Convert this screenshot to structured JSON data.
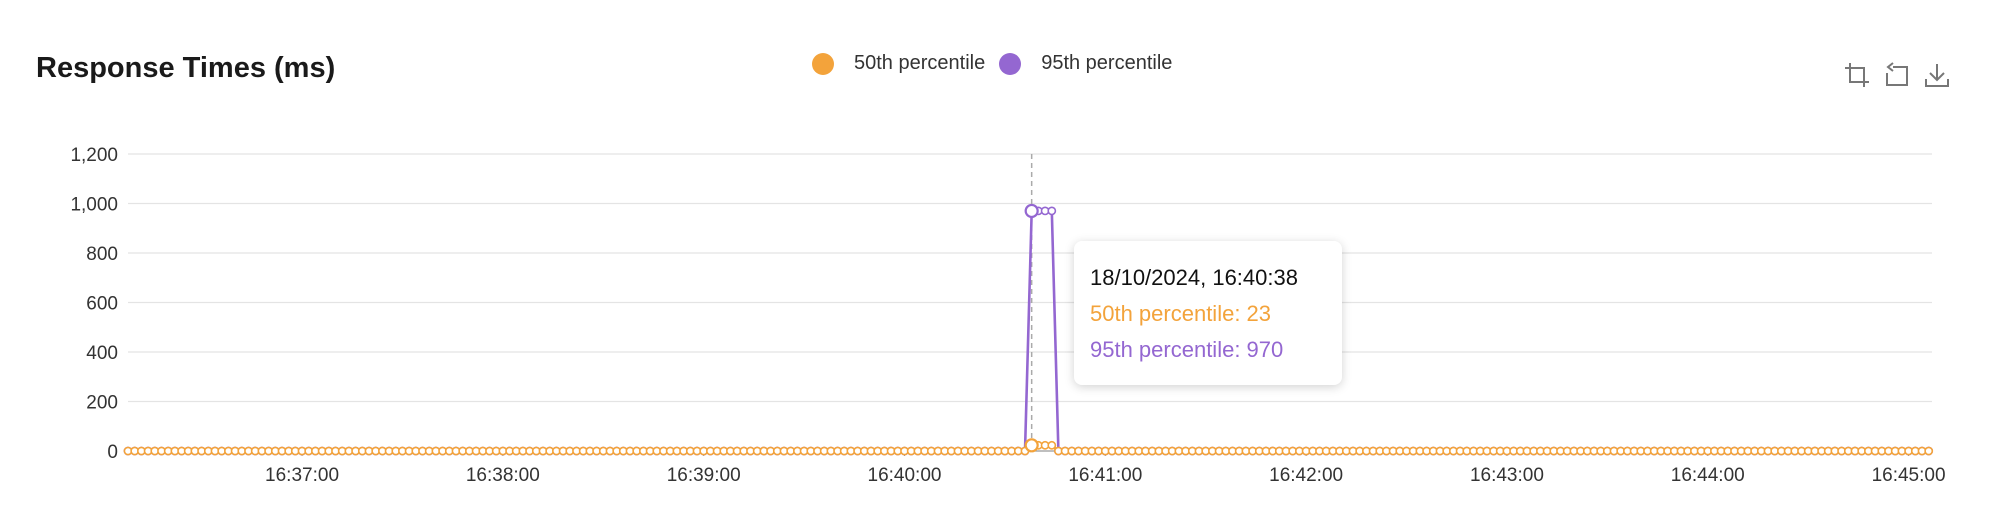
{
  "title": "Response Times (ms)",
  "colors": {
    "p50": "#f3a33b",
    "p95": "#9467d1",
    "grid": "#e4e4e4",
    "axis": "#333333"
  },
  "toolbar": {
    "icons": [
      "crop-icon",
      "reset-zoom-icon",
      "download-icon"
    ]
  },
  "tooltip": {
    "date": "18/10/2024, 16:40:38",
    "p50": "50th percentile: 23",
    "p95": "95th percentile: 970"
  },
  "chart_data": {
    "type": "line",
    "title": "Response Times (ms)",
    "xlabel": "",
    "ylabel": "",
    "x_axis": {
      "type": "time",
      "range": [
        "16:36:08",
        "16:45:07"
      ],
      "ticks": [
        "16:37:00",
        "16:38:00",
        "16:39:00",
        "16:40:00",
        "16:41:00",
        "16:42:00",
        "16:43:00",
        "16:44:00",
        "16:45:00"
      ]
    },
    "y_axis": {
      "range": [
        0,
        1200
      ],
      "ticks": [
        "0",
        "200",
        "400",
        "600",
        "800",
        "1,000",
        "1,200"
      ]
    },
    "grid": true,
    "legend_position": "top-center",
    "sample_interval_s": 2,
    "series": [
      {
        "name": "50th percentile",
        "color": "#f3a33b",
        "baseline": 0,
        "points": [
          {
            "t": "16:40:38",
            "value": 23
          },
          {
            "t": "16:40:40",
            "value": 23
          },
          {
            "t": "16:40:42",
            "value": 23
          },
          {
            "t": "16:40:44",
            "value": 23
          }
        ]
      },
      {
        "name": "95th percentile",
        "color": "#9467d1",
        "baseline": 0,
        "points": [
          {
            "t": "16:40:38",
            "value": 970
          },
          {
            "t": "16:40:40",
            "value": 970
          },
          {
            "t": "16:40:42",
            "value": 970
          },
          {
            "t": "16:40:44",
            "value": 970
          }
        ]
      }
    ]
  }
}
